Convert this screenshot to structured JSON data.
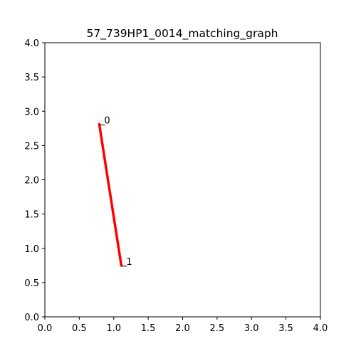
{
  "chart_data": {
    "type": "line",
    "title": "57_739HP1_0014_matching_graph",
    "xlabel": "",
    "ylabel": "",
    "xlim": [
      0,
      4
    ],
    "ylim": [
      0,
      4
    ],
    "grid": false,
    "x_ticks": [
      "0.0",
      "0.5",
      "1.0",
      "1.5",
      "2.0",
      "2.5",
      "3.0",
      "3.5",
      "4.0"
    ],
    "y_ticks": [
      "0.0",
      "0.5",
      "1.0",
      "1.5",
      "2.0",
      "2.5",
      "3.0",
      "3.5",
      "4.0"
    ],
    "nodes": [
      {
        "label": "0",
        "x": 0.79,
        "y": 2.81
      },
      {
        "label": "1",
        "x": 1.11,
        "y": 0.75
      }
    ],
    "edges": [
      {
        "from": 0,
        "to": 1,
        "color": "#ff0000"
      }
    ]
  }
}
